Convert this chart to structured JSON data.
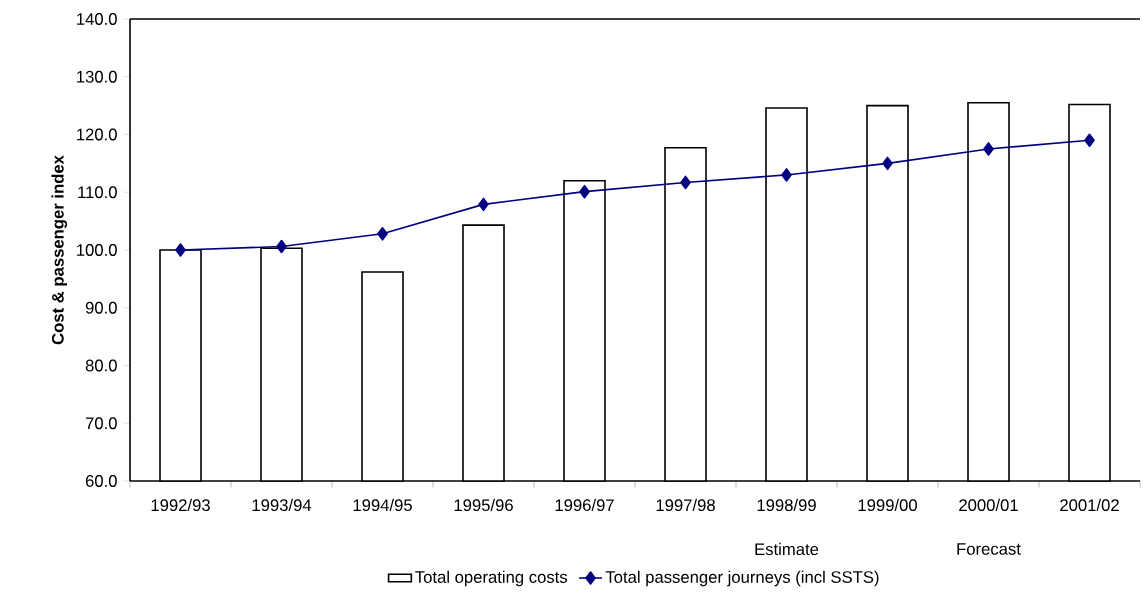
{
  "chart_data": {
    "type": "bar",
    "ylabel": "Cost & passenger index",
    "categories": [
      "1992/93",
      "1993/94",
      "1994/95",
      "1995/96",
      "1996/97",
      "1997/98",
      "1998/99",
      "1999/00",
      "2000/01",
      "2001/02"
    ],
    "series": [
      {
        "name": "Total operating costs",
        "color": "#ffffff",
        "values": [
          100.0,
          100.3,
          96.2,
          104.3,
          112.0,
          117.7,
          124.6,
          125.0,
          125.5,
          125.2
        ]
      },
      {
        "name": "Total passenger journeys (incl SSTS)",
        "type": "line",
        "color": "#000080",
        "marker": "diamond",
        "values": [
          100.0,
          100.6,
          102.8,
          107.9,
          110.1,
          111.7,
          113.0,
          115.0,
          117.5,
          119.0
        ]
      }
    ],
    "ylim": [
      60,
      140
    ],
    "yticks": [
      {
        "value": 60,
        "label": "60.0"
      },
      {
        "value": 70,
        "label": "70.0"
      },
      {
        "value": 80,
        "label": "80.0"
      },
      {
        "value": 90,
        "label": "90.0"
      },
      {
        "value": 100,
        "label": "100.0"
      },
      {
        "value": 110,
        "label": "110.0"
      },
      {
        "value": 120,
        "label": "120.0"
      },
      {
        "value": 130,
        "label": "130.0"
      },
      {
        "value": 140,
        "label": "140.0"
      }
    ],
    "annotations": [
      "Estimate",
      "Forecast"
    ],
    "legend": "bottom",
    "grid": false
  }
}
